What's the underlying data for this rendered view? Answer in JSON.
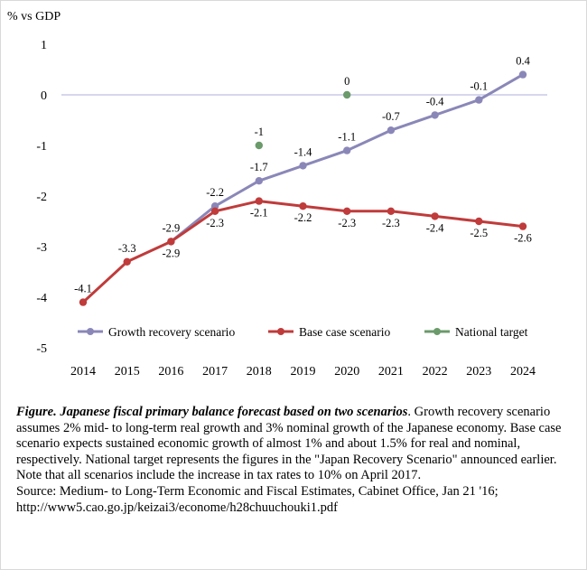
{
  "chart_data": {
    "type": "line",
    "ylabel": "% vs GDP",
    "xlabel": "",
    "ylim": [
      -5,
      1
    ],
    "y_ticks": [
      1,
      0,
      -1,
      -2,
      -3,
      -4,
      -5
    ],
    "categories": [
      "2014",
      "2015",
      "2016",
      "2017",
      "2018",
      "2019",
      "2020",
      "2021",
      "2022",
      "2023",
      "2024"
    ],
    "grid": "zero line only",
    "legend_position": "bottom, inside plot",
    "series": [
      {
        "name": "Growth recovery scenario",
        "color": "#8a87b8",
        "values": [
          null,
          null,
          -2.9,
          -2.2,
          -1.7,
          -1.4,
          -1.1,
          -0.7,
          -0.4,
          -0.1,
          0.4
        ],
        "labels": [
          null,
          null,
          "-2.9",
          "-2.2",
          "-1.7",
          "-1.4",
          "-1.1",
          "-0.7",
          "-0.4",
          "-0.1",
          "0.4"
        ]
      },
      {
        "name": "Base case scenario",
        "color": "#c03b3b",
        "values": [
          -4.1,
          -3.3,
          -2.9,
          -2.3,
          -2.1,
          -2.2,
          -2.3,
          -2.3,
          -2.4,
          -2.5,
          -2.6
        ],
        "labels": [
          "-4.1",
          "-3.3",
          "-2.9",
          "-2.3",
          "-2.1",
          "-2.2",
          "-2.3",
          "-2.3",
          "-2.4",
          "-2.5",
          "-2.6"
        ]
      },
      {
        "name": "National target",
        "color": "#6b9a6b",
        "values": [
          null,
          null,
          null,
          null,
          -1,
          null,
          0,
          null,
          null,
          null,
          null
        ],
        "labels": [
          null,
          null,
          null,
          null,
          "-1",
          null,
          "0",
          null,
          null,
          null,
          null
        ]
      }
    ]
  },
  "caption": {
    "title": "Figure. Japanese fiscal primary balance forecast based on two scenarios",
    "body": ". Growth recovery scenario assumes 2% mid- to long-term real growth and 3% nominal growth of the Japanese economy. Base case scenario expects sustained economic growth of almost 1% and about 1.5% for real and nominal, respectively. National target represents the figures in the  \"Japan Recovery Scenario\" announced earlier. Note that all scenarios include the increase in tax rates to 10% on April 2017.",
    "source_line": "Source: Medium- to Long-Term Economic and Fiscal Estimates, Cabinet Office, Jan 21 '16;",
    "url_line": "http://www5.cao.go.jp/keizai3/econome/h28chuuchouki1.pdf"
  }
}
